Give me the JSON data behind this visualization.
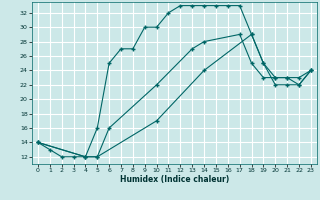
{
  "xlabel": "Humidex (Indice chaleur)",
  "bg_color": "#cce8e8",
  "grid_color": "#ffffff",
  "line_color": "#006666",
  "xlim": [
    -0.5,
    23.5
  ],
  "ylim": [
    11.0,
    33.5
  ],
  "xticks": [
    0,
    1,
    2,
    3,
    4,
    5,
    6,
    7,
    8,
    9,
    10,
    11,
    12,
    13,
    14,
    15,
    16,
    17,
    18,
    19,
    20,
    21,
    22,
    23
  ],
  "yticks": [
    12,
    14,
    16,
    18,
    20,
    22,
    24,
    26,
    28,
    30,
    32
  ],
  "line1_x": [
    0,
    1,
    2,
    3,
    4,
    5,
    6,
    7,
    8,
    9,
    10,
    11,
    12,
    13,
    14,
    15,
    16,
    17,
    18,
    19,
    20,
    21,
    22,
    23
  ],
  "line1_y": [
    14,
    13,
    12,
    12,
    12,
    16,
    25,
    27,
    27,
    30,
    30,
    32,
    33,
    33,
    33,
    33,
    33,
    33,
    29,
    25,
    23,
    23,
    23,
    24
  ],
  "line2_x": [
    0,
    4,
    5,
    6,
    10,
    13,
    14,
    17,
    18,
    19,
    20,
    21,
    22,
    23
  ],
  "line2_y": [
    14,
    12,
    12,
    16,
    22,
    27,
    28,
    29,
    25,
    23,
    23,
    23,
    22,
    24
  ],
  "line3_x": [
    0,
    4,
    5,
    10,
    14,
    18,
    19,
    20,
    21,
    22,
    23
  ],
  "line3_y": [
    14,
    12,
    12,
    17,
    24,
    29,
    25,
    22,
    22,
    22,
    24
  ],
  "marker": "+"
}
